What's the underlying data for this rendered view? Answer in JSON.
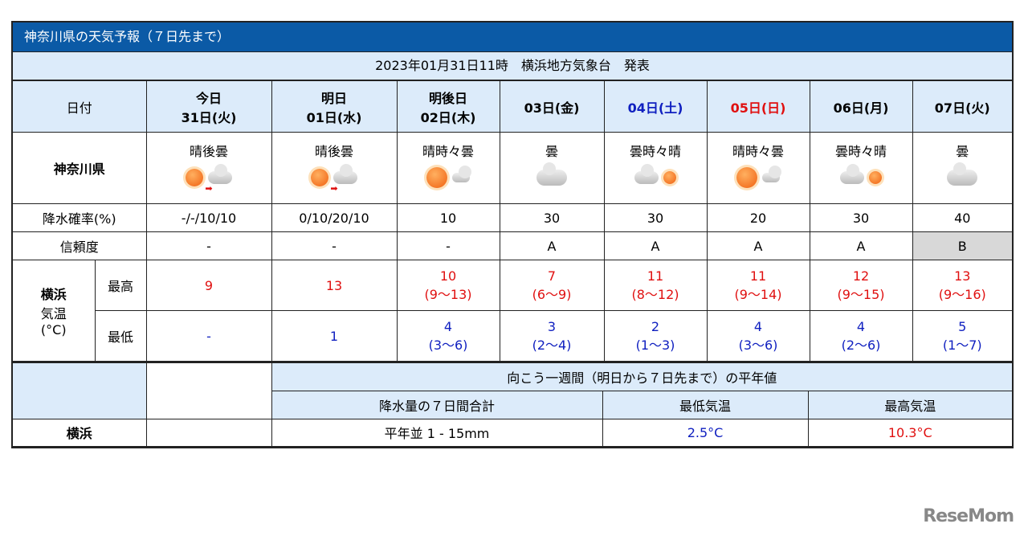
{
  "title": "神奈川県の天気予報（７日先まで）",
  "issued": "2023年01月31日11時　横浜地方気象台　発表",
  "labels": {
    "date": "日付",
    "region": "神奈川県",
    "pop": "降水確率(%)",
    "reliability": "信頼度",
    "city": "横浜",
    "temp": "気温",
    "temp_unit": "(°C)",
    "max": "最高",
    "min": "最低"
  },
  "days": [
    {
      "line1": "今日",
      "line2": "31日(火)",
      "weather": "晴後曇",
      "icon": "sun-then-cloud",
      "pop": "-/-/10/10",
      "rel": "-",
      "max": "9",
      "max_range": "",
      "min": "-",
      "min_range": ""
    },
    {
      "line1": "明日",
      "line2": "01日(水)",
      "weather": "晴後曇",
      "icon": "sun-then-cloud",
      "pop": "0/10/20/10",
      "rel": "-",
      "max": "13",
      "max_range": "",
      "min": "1",
      "min_range": ""
    },
    {
      "line1": "明後日",
      "line2": "02日(木)",
      "weather": "晴時々曇",
      "icon": "sun-sometimes-cloud",
      "pop": "10",
      "rel": "-",
      "max": "10",
      "max_range": "(9〜13)",
      "min": "4",
      "min_range": "(3〜6)"
    },
    {
      "line1": "",
      "line2": "03日(金)",
      "weather": "曇",
      "icon": "cloud",
      "pop": "30",
      "rel": "A",
      "max": "7",
      "max_range": "(6〜9)",
      "min": "3",
      "min_range": "(2〜4)"
    },
    {
      "line1": "",
      "line2": "04日(土)",
      "weather": "曇時々晴",
      "icon": "cloud-sometimes-sun",
      "pop": "30",
      "rel": "A",
      "max": "11",
      "max_range": "(8〜12)",
      "min": "2",
      "min_range": "(1〜3)",
      "color": "sat"
    },
    {
      "line1": "",
      "line2": "05日(日)",
      "weather": "晴時々曇",
      "icon": "sun-sometimes-cloud",
      "pop": "20",
      "rel": "A",
      "max": "11",
      "max_range": "(9〜14)",
      "min": "4",
      "min_range": "(3〜6)",
      "color": "sun"
    },
    {
      "line1": "",
      "line2": "06日(月)",
      "weather": "曇時々晴",
      "icon": "cloud-sometimes-sun",
      "pop": "30",
      "rel": "A",
      "max": "12",
      "max_range": "(9〜15)",
      "min": "4",
      "min_range": "(2〜6)"
    },
    {
      "line1": "",
      "line2": "07日(火)",
      "weather": "曇",
      "icon": "cloud",
      "pop": "40",
      "rel": "B",
      "max": "13",
      "max_range": "(9〜16)",
      "min": "5",
      "min_range": "(1〜7)"
    }
  ],
  "normals": {
    "heading": "向こう一週間（明日から７日先まで）の平年値",
    "precip_label": "降水量の７日間合計",
    "min_label": "最低気温",
    "max_label": "最高気温",
    "city": "横浜",
    "precip": "平年並 1 - 15mm",
    "min": "2.5°C",
    "max": "10.3°C"
  },
  "logo": "ReseMom"
}
